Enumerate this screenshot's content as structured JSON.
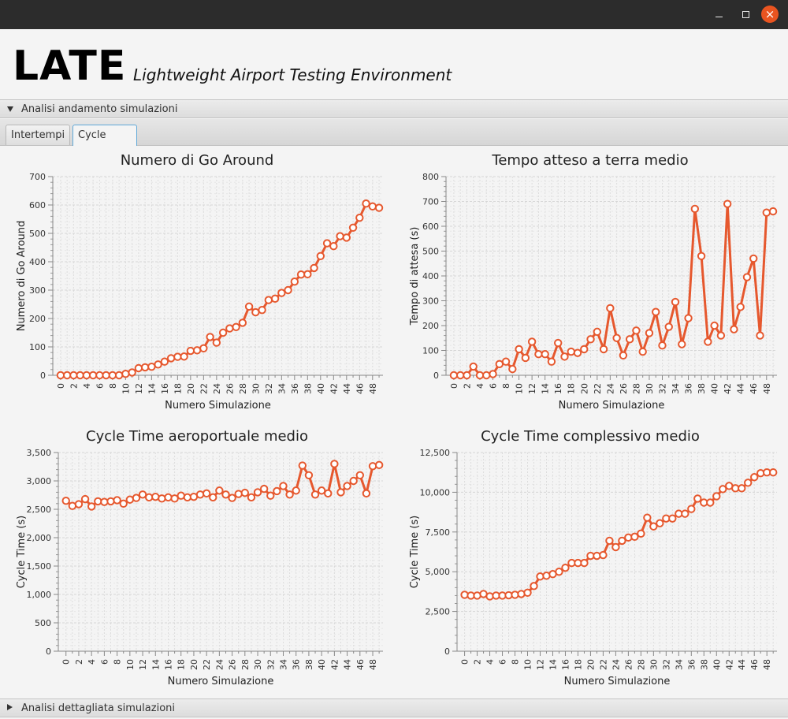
{
  "window": {
    "close_glyph": "×"
  },
  "header": {
    "brand": "LATE",
    "subtitle": "Lightweight Airport Testing Environment"
  },
  "sections": {
    "top": "Analisi andamento simulazioni",
    "bottom": "Analisi dettagliata simulazioni"
  },
  "tabs": [
    {
      "label": "Intertempi",
      "selected": false
    },
    {
      "label": "Cycle Time",
      "selected": true
    }
  ],
  "colors": {
    "series": "#e6582e"
  },
  "chart_data": [
    {
      "type": "line",
      "title": "Numero di Go Around",
      "xlabel": "Numero Simulazione",
      "ylabel": "Numero di Go Around",
      "x": [
        0,
        1,
        2,
        3,
        4,
        5,
        6,
        7,
        8,
        9,
        10,
        11,
        12,
        13,
        14,
        15,
        16,
        17,
        18,
        19,
        20,
        21,
        22,
        23,
        24,
        25,
        26,
        27,
        28,
        29,
        30,
        31,
        32,
        33,
        34,
        35,
        36,
        37,
        38,
        39,
        40,
        41,
        42,
        43,
        44,
        45,
        46,
        47,
        48,
        49
      ],
      "values": [
        0,
        0,
        0,
        0,
        0,
        0,
        0,
        0,
        0,
        0,
        5,
        10,
        25,
        28,
        30,
        38,
        48,
        60,
        65,
        66,
        86,
        88,
        95,
        135,
        115,
        150,
        165,
        170,
        185,
        242,
        222,
        230,
        265,
        270,
        290,
        300,
        330,
        355,
        356,
        378,
        420,
        465,
        455,
        490,
        485,
        520,
        555,
        605,
        595,
        590
      ],
      "ylim": [
        0,
        700
      ],
      "yticks": [
        0,
        100,
        200,
        300,
        400,
        500,
        600,
        700
      ],
      "ytick_labels": [
        "0",
        "100",
        "200",
        "300",
        "400",
        "500",
        "600",
        "700"
      ],
      "xticks": [
        0,
        2,
        4,
        6,
        8,
        10,
        12,
        14,
        16,
        18,
        20,
        22,
        24,
        26,
        28,
        30,
        32,
        34,
        36,
        38,
        40,
        42,
        44,
        46,
        48
      ],
      "xlim": [
        -1.2,
        49.6
      ],
      "grid": true
    },
    {
      "type": "line",
      "title": "Tempo atteso a terra medio",
      "xlabel": "Numero Simulazione",
      "ylabel": "Tempo di attesa (s)",
      "x": [
        0,
        1,
        2,
        3,
        4,
        5,
        6,
        7,
        8,
        9,
        10,
        11,
        12,
        13,
        14,
        15,
        16,
        17,
        18,
        19,
        20,
        21,
        22,
        23,
        24,
        25,
        26,
        27,
        28,
        29,
        30,
        31,
        32,
        33,
        34,
        35,
        36,
        37,
        38,
        39,
        40,
        41,
        42,
        43,
        44,
        45,
        46,
        47,
        48,
        49
      ],
      "values": [
        0,
        0,
        0,
        35,
        0,
        0,
        5,
        45,
        55,
        25,
        105,
        70,
        135,
        85,
        85,
        55,
        130,
        75,
        95,
        90,
        105,
        145,
        175,
        105,
        270,
        150,
        80,
        145,
        180,
        95,
        170,
        255,
        120,
        195,
        295,
        125,
        230,
        670,
        480,
        135,
        200,
        160,
        690,
        185,
        275,
        395,
        470,
        160,
        655,
        660
      ],
      "ylim": [
        0,
        800
      ],
      "yticks": [
        0,
        100,
        200,
        300,
        400,
        500,
        600,
        700,
        800
      ],
      "ytick_labels": [
        "0",
        "100",
        "200",
        "300",
        "400",
        "500",
        "600",
        "700",
        "800"
      ],
      "xticks": [
        0,
        2,
        4,
        6,
        8,
        10,
        12,
        14,
        16,
        18,
        20,
        22,
        24,
        26,
        28,
        30,
        32,
        34,
        36,
        38,
        40,
        42,
        44,
        46,
        48
      ],
      "xlim": [
        -1.2,
        49.6
      ],
      "grid": true
    },
    {
      "type": "line",
      "title": "Cycle Time aeroportuale medio",
      "xlabel": "Numero Simulazione",
      "ylabel": "Cycle Time (s)",
      "x": [
        0,
        1,
        2,
        3,
        4,
        5,
        6,
        7,
        8,
        9,
        10,
        11,
        12,
        13,
        14,
        15,
        16,
        17,
        18,
        19,
        20,
        21,
        22,
        23,
        24,
        25,
        26,
        27,
        28,
        29,
        30,
        31,
        32,
        33,
        34,
        35,
        36,
        37,
        38,
        39,
        40,
        41,
        42,
        43,
        44,
        45,
        46,
        47,
        48,
        49
      ],
      "values": [
        2650,
        2560,
        2590,
        2680,
        2550,
        2640,
        2630,
        2640,
        2660,
        2600,
        2670,
        2700,
        2760,
        2710,
        2720,
        2690,
        2710,
        2690,
        2740,
        2710,
        2720,
        2760,
        2780,
        2710,
        2830,
        2760,
        2700,
        2770,
        2790,
        2710,
        2800,
        2860,
        2740,
        2820,
        2910,
        2760,
        2830,
        3270,
        3100,
        2760,
        2830,
        2780,
        3300,
        2800,
        2910,
        3000,
        3100,
        2780,
        3260,
        3280
      ],
      "ylim": [
        0,
        3500
      ],
      "yticks": [
        0,
        500,
        1000,
        1500,
        2000,
        2500,
        3000,
        3500
      ],
      "ytick_labels": [
        "0",
        "500",
        "1,000",
        "1,500",
        "2,000",
        "2,500",
        "3,000",
        "3,500"
      ],
      "xticks": [
        0,
        2,
        4,
        6,
        8,
        10,
        12,
        14,
        16,
        18,
        20,
        22,
        24,
        26,
        28,
        30,
        32,
        34,
        36,
        38,
        40,
        42,
        44,
        46,
        48
      ],
      "xlim": [
        -1.2,
        49.6
      ],
      "grid": true
    },
    {
      "type": "line",
      "title": "Cycle Time complessivo medio",
      "xlabel": "Numero Simulazione",
      "ylabel": "Cycle Time (s)",
      "x": [
        0,
        1,
        2,
        3,
        4,
        5,
        6,
        7,
        8,
        9,
        10,
        11,
        12,
        13,
        14,
        15,
        16,
        17,
        18,
        19,
        20,
        21,
        22,
        23,
        24,
        25,
        26,
        27,
        28,
        29,
        30,
        31,
        32,
        33,
        34,
        35,
        36,
        37,
        38,
        39,
        40,
        41,
        42,
        43,
        44,
        45,
        46,
        47,
        48,
        49
      ],
      "values": [
        3550,
        3500,
        3500,
        3600,
        3450,
        3500,
        3500,
        3520,
        3550,
        3600,
        3680,
        4100,
        4700,
        4750,
        4850,
        5000,
        5250,
        5550,
        5550,
        5550,
        6000,
        6000,
        6050,
        6950,
        6550,
        6950,
        7150,
        7200,
        7400,
        8400,
        7850,
        8050,
        8350,
        8350,
        8650,
        8650,
        8950,
        9600,
        9350,
        9350,
        9750,
        10200,
        10400,
        10250,
        10250,
        10600,
        10950,
        11200,
        11250,
        11250
      ],
      "ylim": [
        0,
        12500
      ],
      "yticks": [
        0,
        2500,
        5000,
        7500,
        10000,
        12500
      ],
      "ytick_labels": [
        "0",
        "2,500",
        "5,000",
        "7,500",
        "10,000",
        "12,500"
      ],
      "xticks": [
        0,
        2,
        4,
        6,
        8,
        10,
        12,
        14,
        16,
        18,
        20,
        22,
        24,
        26,
        28,
        30,
        32,
        34,
        36,
        38,
        40,
        42,
        44,
        46,
        48
      ],
      "xlim": [
        -1.2,
        49.6
      ],
      "grid": true
    }
  ]
}
